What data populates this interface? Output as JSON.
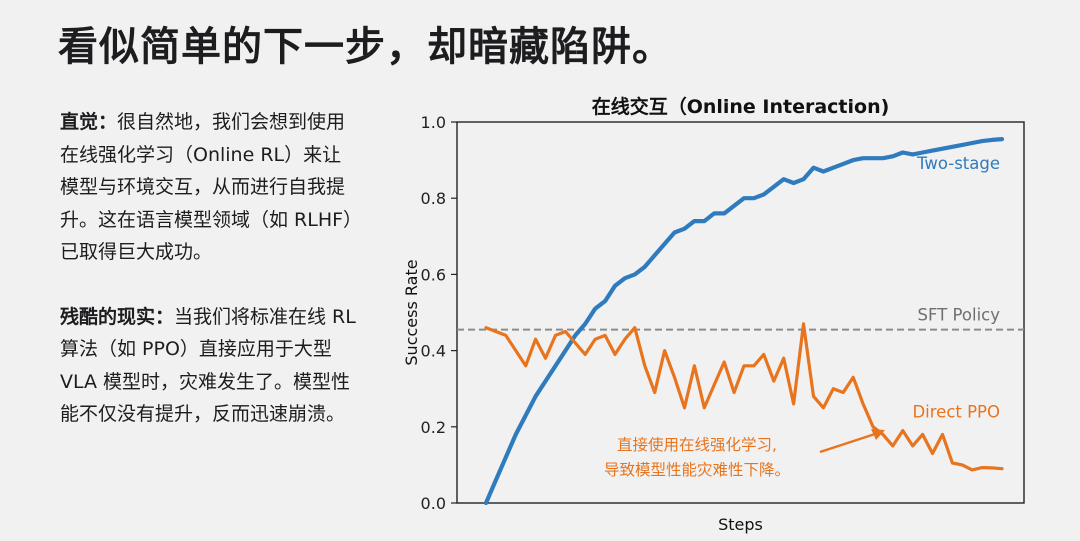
{
  "slide": {
    "title": "看似简单的下一步，却暗藏陷阱。"
  },
  "left": {
    "para1_label": "直觉：",
    "para1_text": "很自然地，我们会想到使用在线强化学习（Online RL）来让模型与环境交互，从而进行自我提升。这在语言模型领域（如 RLHF）已取得巨大成功。",
    "para2_label": "残酷的现实：",
    "para2_text": "当我们将标准在线 RL 算法（如 PPO）直接应用于大型 VLA 模型时，灾难发生了。模型性能不仅没有提升，反而迅速崩溃。"
  },
  "chart_data": {
    "type": "line",
    "title": "在线交互（Online Interaction)",
    "xlabel": "Steps",
    "ylabel": "Success Rate",
    "ylim": [
      0,
      1.0
    ],
    "yticks": [
      "0.0",
      "0.2",
      "0.4",
      "0.6",
      "0.8",
      "1.0"
    ],
    "x_ticks_shown": false,
    "grid": false,
    "series": [
      {
        "name": "Two-stage",
        "color": "#2f7bbd",
        "values": [
          0.0,
          0.06,
          0.12,
          0.18,
          0.23,
          0.28,
          0.32,
          0.36,
          0.4,
          0.44,
          0.47,
          0.51,
          0.53,
          0.57,
          0.59,
          0.6,
          0.62,
          0.65,
          0.68,
          0.71,
          0.72,
          0.74,
          0.74,
          0.76,
          0.76,
          0.78,
          0.8,
          0.8,
          0.81,
          0.83,
          0.85,
          0.84,
          0.85,
          0.88,
          0.87,
          0.88,
          0.89,
          0.9,
          0.905,
          0.905,
          0.905,
          0.91,
          0.92,
          0.915,
          0.92,
          0.925,
          0.93,
          0.935,
          0.94,
          0.945,
          0.95,
          0.953,
          0.955
        ]
      },
      {
        "name": "Direct PPO",
        "color": "#e8741e",
        "values": [
          0.46,
          0.45,
          0.44,
          0.4,
          0.36,
          0.43,
          0.38,
          0.44,
          0.45,
          0.42,
          0.39,
          0.43,
          0.44,
          0.39,
          0.43,
          0.46,
          0.36,
          0.29,
          0.4,
          0.33,
          0.25,
          0.36,
          0.25,
          0.31,
          0.37,
          0.29,
          0.36,
          0.36,
          0.39,
          0.32,
          0.38,
          0.26,
          0.47,
          0.28,
          0.25,
          0.3,
          0.29,
          0.33,
          0.26,
          0.2,
          0.18,
          0.15,
          0.19,
          0.15,
          0.18,
          0.13,
          0.18,
          0.105,
          0.1,
          0.087,
          0.093,
          0.092,
          0.09
        ]
      }
    ],
    "reference_line": {
      "label": "SFT Policy",
      "value": 0.455,
      "color": "#8c8c8c",
      "style": "dashed"
    },
    "annotation": {
      "lines": [
        "直接使用在线强化学习,",
        "导致模型性能灾难性下降。"
      ],
      "color": "#e8741e"
    }
  }
}
